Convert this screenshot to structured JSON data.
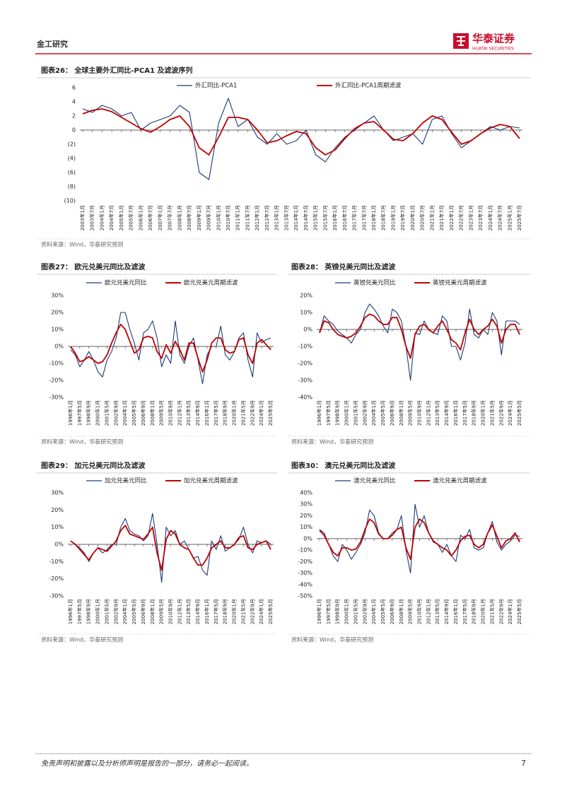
{
  "header": {
    "section": "金工研究",
    "logo_cn": "华泰证券",
    "logo_en": "HUATAI SECURITIES"
  },
  "footer": {
    "disclaimer": "免责声明和披露以及分析师声明是报告的一部分，请务必一起阅读。",
    "page": "7"
  },
  "chart_data": [
    {
      "type": "line",
      "title": "图表26：  全球主要外汇同比-PCA1 及滤波序列",
      "source": "资料来源：Wind，华泰研究预测",
      "categories": [
        "2003年1月",
        "2003年7月",
        "2004年1月",
        "2004年7月",
        "2005年1月",
        "2005年7月",
        "2006年1月",
        "2006年7月",
        "2007年1月",
        "2007年7月",
        "2008年1月",
        "2008年7月",
        "2009年1月",
        "2009年7月",
        "2010年1月",
        "2010年7月",
        "2011年1月",
        "2011年7月",
        "2012年1月",
        "2012年7月",
        "2013年1月",
        "2013年7月",
        "2014年1月",
        "2014年7月",
        "2015年1月",
        "2015年7月",
        "2016年1月",
        "2016年7月",
        "2017年1月",
        "2017年7月",
        "2018年1月",
        "2018年7月",
        "2019年1月",
        "2019年7月",
        "2020年1月",
        "2020年7月",
        "2021年1月",
        "2021年7月",
        "2022年1月",
        "2022年7月",
        "2023年1月",
        "2023年7月",
        "2024年1月",
        "2024年7月",
        "2025年1月",
        "2025年7月"
      ],
      "series": [
        {
          "name": "外汇同比-PCA1",
          "color": "#1f3a7a",
          "values": [
            3,
            2.5,
            3.5,
            3,
            2,
            2.5,
            0,
            1,
            1.5,
            2,
            3.5,
            2.5,
            -6,
            -7,
            1,
            4.5,
            0.5,
            1.5,
            -1,
            -2,
            -0.5,
            -2,
            -1.5,
            0,
            -3.5,
            -4.5,
            -2.5,
            -1,
            0,
            1,
            2,
            0,
            -1.5,
            -1,
            -0.5,
            -2,
            1.5,
            2,
            -0.5,
            -2.5,
            -1.5,
            -0.5,
            0.5,
            0,
            0.5,
            0.3
          ]
        },
        {
          "name": "外汇同比-PCA1周期滤波",
          "color": "#c00000",
          "values": [
            2.3,
            2.8,
            3.0,
            2.6,
            1.8,
            1.0,
            0.2,
            -0.3,
            0.5,
            1.5,
            2.0,
            0.5,
            -2.5,
            -3.5,
            -1,
            1.8,
            1.8,
            1.5,
            0,
            -1.8,
            -1.5,
            -0.8,
            -0.2,
            -0.5,
            -2.5,
            -3.5,
            -2.8,
            -1.2,
            0.2,
            1.0,
            1.2,
            0,
            -1.3,
            -1.5,
            -0.5,
            1.0,
            2.0,
            1.5,
            -0.3,
            -2.0,
            -1.5,
            -0.5,
            0.3,
            0.8,
            0.5,
            -1.2
          ]
        }
      ],
      "ylim": [
        -10,
        6
      ],
      "yticks": [
        6,
        4,
        2,
        0,
        {
          "value": -2,
          "label": "(2)"
        },
        {
          "value": -4,
          "label": "(4)"
        },
        {
          "value": -6,
          "label": "(6)"
        },
        {
          "value": -8,
          "label": "(8)"
        },
        {
          "value": -10,
          "label": "(10)"
        }
      ]
    },
    {
      "type": "line",
      "title": "图表27：  欧元兑美元同比及滤波",
      "source": "资料来源：Wind，华泰研究预测",
      "categories": [
        "1996年1月",
        null,
        "1997年5月",
        null,
        "1998年9月",
        null,
        "2000年1月",
        null,
        "2001年5月",
        null,
        "2002年9月",
        null,
        "2004年1月",
        null,
        "2005年5月",
        null,
        "2006年9月",
        null,
        "2008年1月",
        null,
        "2009年5月",
        null,
        "2010年9月",
        null,
        "2012年1月",
        null,
        "2013年5月",
        null,
        "2014年9月",
        null,
        "2016年1月",
        null,
        "2017年5月",
        null,
        "2018年9月",
        null,
        "2020年1月",
        null,
        "2021年5月",
        null,
        "2022年9月",
        null,
        "2024年1月",
        null,
        "2025年5月"
      ],
      "series": [
        {
          "name": "欧元兑美元同比",
          "color": "#1f3a7a",
          "values": [
            -2,
            -5,
            -12,
            -8,
            -3,
            -8,
            -15,
            -18,
            -8,
            -3,
            5,
            20,
            20,
            10,
            2,
            -8,
            8,
            10,
            15,
            5,
            -12,
            -5,
            -10,
            15,
            -5,
            -10,
            0,
            5,
            -8,
            -22,
            -5,
            0,
            0,
            12,
            -5,
            -8,
            -3,
            5,
            8,
            -8,
            -18,
            8,
            2,
            4,
            5
          ]
        },
        {
          "name": "欧元兑美元周期滤波",
          "color": "#c00000",
          "values": [
            0,
            -4,
            -9,
            -8,
            -6,
            -8,
            -10,
            -9,
            -5,
            2,
            8,
            13,
            10,
            3,
            -4,
            -2,
            5,
            6,
            5,
            -3,
            -7,
            1,
            -4,
            3,
            -2,
            -8,
            2,
            2,
            -7,
            -15,
            -8,
            2,
            5,
            5,
            -2,
            -4,
            -3,
            4,
            5,
            -5,
            -10,
            2,
            4,
            1,
            -2
          ]
        }
      ],
      "ylim": [
        -30,
        30
      ],
      "yticks": [
        {
          "value": 30,
          "label": "30%"
        },
        {
          "value": 20,
          "label": "20%"
        },
        {
          "value": 10,
          "label": "10%"
        },
        {
          "value": 0,
          "label": "0%"
        },
        {
          "value": -10,
          "label": "-10%"
        },
        {
          "value": -20,
          "label": "-20%"
        },
        {
          "value": -30,
          "label": "-30%"
        }
      ]
    },
    {
      "type": "line",
      "title": "图表28：  英镑兑美元同比及滤波",
      "source": "资料来源：Wind，华泰研究预测",
      "categories": [
        "1996年1月",
        null,
        "1997年5月",
        null,
        "1998年9月",
        null,
        "2000年1月",
        null,
        "2001年5月",
        null,
        "2002年9月",
        null,
        "2004年1月",
        null,
        "2005年5月",
        null,
        "2006年9月",
        null,
        "2008年1月",
        null,
        "2009年5月",
        null,
        "2010年9月",
        null,
        "2012年1月",
        null,
        "2013年5月",
        null,
        "2014年9月",
        null,
        "2016年1月",
        null,
        "2017年5月",
        null,
        "2018年9月",
        null,
        "2020年1月",
        null,
        "2021年5月",
        null,
        "2022年9月",
        null,
        "2024年1月",
        null,
        "2025年5月"
      ],
      "series": [
        {
          "name": "英镑兑美元同比",
          "color": "#1f3a7a",
          "values": [
            -2,
            8,
            5,
            3,
            -1,
            -3,
            -5,
            -8,
            -3,
            0,
            10,
            15,
            12,
            8,
            2,
            -2,
            12,
            10,
            5,
            -10,
            -30,
            -2,
            -3,
            5,
            0,
            -2,
            -3,
            8,
            5,
            -10,
            -10,
            -18,
            -8,
            12,
            -3,
            -5,
            0,
            -3,
            10,
            5,
            -15,
            5,
            5,
            5,
            3
          ]
        },
        {
          "name": "英镑兑美元周期滤波",
          "color": "#c00000",
          "values": [
            -2,
            5,
            4,
            0,
            -3,
            -4,
            -5,
            -4,
            -2,
            2,
            7,
            9,
            8,
            5,
            3,
            3,
            7,
            7,
            0,
            -10,
            -17,
            -3,
            2,
            3,
            0,
            -2,
            2,
            5,
            0,
            -6,
            -8,
            -12,
            -2,
            6,
            0,
            -3,
            0,
            2,
            6,
            2,
            -8,
            0,
            3,
            3,
            -3
          ]
        }
      ],
      "ylim": [
        -40,
        20
      ],
      "yticks": [
        {
          "value": 20,
          "label": "20%"
        },
        {
          "value": 10,
          "label": "10%"
        },
        {
          "value": 0,
          "label": "0%"
        },
        {
          "value": -10,
          "label": "-10%"
        },
        {
          "value": -20,
          "label": "-20%"
        },
        {
          "value": -30,
          "label": "-30%"
        },
        {
          "value": -40,
          "label": "-40%"
        }
      ]
    },
    {
      "type": "line",
      "title": "图表29：  加元兑美元同比及滤波",
      "source": "资料来源：Wind，华泰研究预测",
      "categories": [
        "1996年1月",
        null,
        "1997年5月",
        null,
        "1998年9月",
        null,
        "2000年1月",
        null,
        "2001年5月",
        null,
        "2002年9月",
        null,
        "2004年1月",
        null,
        "2005年5月",
        null,
        "2006年9月",
        null,
        "2008年1月",
        null,
        "2009年5月",
        null,
        "2010年9月",
        null,
        "2012年1月",
        null,
        "2013年5月",
        null,
        "2014年9月",
        null,
        "2016年1月",
        null,
        "2017年5月",
        null,
        "2018年9月",
        null,
        "2020年1月",
        null,
        "2021年5月",
        null,
        "2022年9月",
        null,
        "2024年1月",
        null,
        "2025年5月"
      ],
      "series": [
        {
          "name": "加元兑美元同比",
          "color": "#1f3a7a",
          "values": [
            2,
            0,
            -2,
            -5,
            -10,
            -5,
            -2,
            -5,
            -3,
            0,
            0,
            10,
            15,
            8,
            6,
            5,
            2,
            5,
            18,
            0,
            -22,
            10,
            5,
            8,
            0,
            2,
            -3,
            -8,
            -7,
            -15,
            -18,
            2,
            -3,
            5,
            -4,
            -2,
            0,
            3,
            10,
            0,
            -5,
            2,
            1,
            2,
            0
          ]
        },
        {
          "name": "加元兑美元周期滤波",
          "color": "#c00000",
          "values": [
            2,
            0,
            -3,
            -6,
            -9,
            -5,
            -2,
            -3,
            -4,
            -1,
            2,
            8,
            11,
            6,
            5,
            4,
            3,
            6,
            10,
            -5,
            -15,
            3,
            8,
            6,
            0,
            -2,
            -3,
            -8,
            -12,
            -12,
            -8,
            -2,
            0,
            2,
            -2,
            -2,
            0,
            4,
            5,
            -2,
            -3,
            0,
            1,
            2,
            -3
          ]
        }
      ],
      "ylim": [
        -30,
        30
      ],
      "yticks": [
        {
          "value": 30,
          "label": "30%"
        },
        {
          "value": 20,
          "label": "20%"
        },
        {
          "value": 10,
          "label": "10%"
        },
        {
          "value": 0,
          "label": "0%"
        },
        {
          "value": -10,
          "label": "-10%"
        },
        {
          "value": -20,
          "label": "-20%"
        },
        {
          "value": -30,
          "label": "-30%"
        }
      ]
    },
    {
      "type": "line",
      "title": "图表30：  澳元兑美元同比及滤波",
      "source": "资料来源：Wind，华泰研究预测",
      "categories": [
        "1996年1月",
        null,
        "1997年5月",
        null,
        "1998年9月",
        null,
        "2000年1月",
        null,
        "2001年5月",
        null,
        "2002年9月",
        null,
        "2004年1月",
        null,
        "2005年5月",
        null,
        "2006年9月",
        null,
        "2008年1月",
        null,
        "2009年5月",
        null,
        "2010年9月",
        null,
        "2012年1月",
        null,
        "2013年5月",
        null,
        "2014年9月",
        null,
        "2016年1月",
        null,
        "2017年5月",
        null,
        "2018年9月",
        null,
        "2020年1月",
        null,
        "2021年5月",
        null,
        "2022年9月",
        null,
        "2024年1月",
        null,
        "2025年5月"
      ],
      "series": [
        {
          "name": "澳元兑美元同比",
          "color": "#1f3a7a",
          "values": [
            8,
            5,
            -5,
            -15,
            -20,
            -5,
            -10,
            -18,
            -12,
            -5,
            5,
            25,
            20,
            5,
            0,
            0,
            5,
            8,
            20,
            -10,
            -30,
            30,
            10,
            20,
            5,
            -3,
            -5,
            -12,
            -5,
            -15,
            -20,
            3,
            0,
            8,
            -8,
            -10,
            -8,
            5,
            15,
            -3,
            -10,
            -5,
            -2,
            3,
            2
          ]
        },
        {
          "name": "澳元兑美元周期滤波",
          "color": "#c00000",
          "values": [
            7,
            3,
            -5,
            -12,
            -15,
            -8,
            -8,
            -10,
            -9,
            -3,
            8,
            17,
            14,
            4,
            0,
            0,
            3,
            8,
            10,
            -8,
            -18,
            10,
            17,
            14,
            5,
            -2,
            -5,
            -8,
            -10,
            -15,
            -10,
            -2,
            2,
            3,
            -5,
            -8,
            -5,
            5,
            12,
            2,
            -8,
            -2,
            0,
            5,
            -3
          ]
        }
      ],
      "ylim": [
        -50,
        40
      ],
      "yticks": [
        {
          "value": 40,
          "label": "40%"
        },
        {
          "value": 30,
          "label": "30%"
        },
        {
          "value": 20,
          "label": "20%"
        },
        {
          "value": 10,
          "label": "10%"
        },
        {
          "value": 0,
          "label": "0%"
        },
        {
          "value": -10,
          "label": "-10%"
        },
        {
          "value": -20,
          "label": "-20%"
        },
        {
          "value": -30,
          "label": "-30%"
        },
        {
          "value": -40,
          "label": "-40%"
        },
        {
          "value": -50,
          "label": "-50%"
        }
      ]
    }
  ]
}
